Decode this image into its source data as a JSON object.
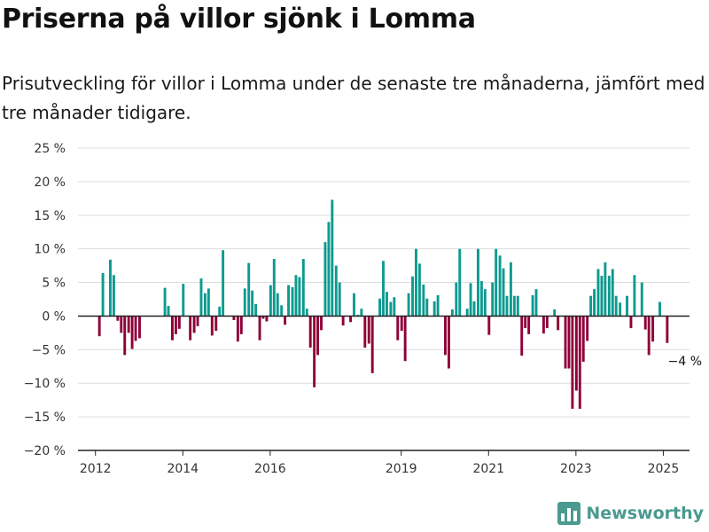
{
  "title": "Priserna på villor sjönk i Lomma",
  "subtitle": "Prisutveckling för villor i Lomma under de senaste tre månaderna, jämfört med tre månader tidigare.",
  "brand": {
    "name": "Newsworthy",
    "icon": "bar-chart-logo-icon"
  },
  "colors": {
    "positive": "#0c9a8f",
    "negative": "#8e0038",
    "grid": "#dddddd",
    "zero_line": "#222222"
  },
  "chart_data": {
    "type": "bar",
    "title": "Priserna på villor sjönk i Lomma",
    "subtitle": "Prisutveckling för villor i Lomma under de senaste tre månaderna, jämfört med tre månader tidigare.",
    "ylim": [
      -20,
      25
    ],
    "y_ticks": [
      -20,
      -15,
      -10,
      -5,
      0,
      5,
      10,
      15,
      20,
      25
    ],
    "y_tick_labels": [
      "−20 %",
      "−15 %",
      "−10 %",
      "−5 %",
      "0 %",
      "5 %",
      "10 %",
      "15 %",
      "20 %",
      "25 %"
    ],
    "x_ticks": [
      2012,
      2014,
      2016,
      2019,
      2021,
      2023,
      2025
    ],
    "x_tick_labels": [
      "2012",
      "2014",
      "2016",
      "2019",
      "2021",
      "2023",
      "2025"
    ],
    "xlim": [
      2011.6,
      2025.6
    ],
    "grid": true,
    "end_label": "−4 %",
    "x": [
      2012.09,
      2012.17,
      2012.26,
      2012.34,
      2012.42,
      2012.51,
      2012.59,
      2012.67,
      2012.76,
      2012.84,
      2012.92,
      2013.01,
      2013.09,
      2013.17,
      2013.26,
      2013.34,
      2013.42,
      2013.51,
      2013.59,
      2013.67,
      2013.76,
      2013.84,
      2013.92,
      2014.01,
      2014.09,
      2014.17,
      2014.26,
      2014.34,
      2014.42,
      2014.51,
      2014.59,
      2014.67,
      2014.76,
      2014.84,
      2014.92,
      2015.01,
      2015.09,
      2015.17,
      2015.26,
      2015.34,
      2015.42,
      2015.51,
      2015.59,
      2015.67,
      2015.76,
      2015.84,
      2015.92,
      2016.01,
      2016.09,
      2016.17,
      2016.26,
      2016.34,
      2016.42,
      2016.51,
      2016.59,
      2016.67,
      2016.76,
      2016.84,
      2016.92,
      2017.01,
      2017.09,
      2017.17,
      2017.26,
      2017.34,
      2017.42,
      2017.51,
      2017.59,
      2017.67,
      2017.76,
      2017.84,
      2017.92,
      2018.01,
      2018.09,
      2018.17,
      2018.26,
      2018.34,
      2018.42,
      2018.51,
      2018.59,
      2018.67,
      2018.76,
      2018.84,
      2018.92,
      2019.01,
      2019.09,
      2019.17,
      2019.26,
      2019.34,
      2019.42,
      2019.51,
      2019.59,
      2019.67,
      2019.76,
      2019.84,
      2019.92,
      2020.01,
      2020.09,
      2020.17,
      2020.26,
      2020.34,
      2020.42,
      2020.51,
      2020.59,
      2020.67,
      2020.76,
      2020.84,
      2020.92,
      2021.01,
      2021.09,
      2021.17,
      2021.26,
      2021.34,
      2021.42,
      2021.51,
      2021.59,
      2021.67,
      2021.76,
      2021.84,
      2021.92,
      2022.01,
      2022.09,
      2022.17,
      2022.26,
      2022.34,
      2022.42,
      2022.51,
      2022.59,
      2022.67,
      2022.76,
      2022.84,
      2022.92,
      2023.01,
      2023.09,
      2023.17,
      2023.26,
      2023.34,
      2023.42,
      2023.51,
      2023.59,
      2023.67,
      2023.76,
      2023.84,
      2023.92,
      2024.01,
      2024.09,
      2024.17,
      2024.26,
      2024.34,
      2024.42,
      2024.51,
      2024.59,
      2024.67,
      2024.76,
      2024.84,
      2024.92,
      2025.01,
      2025.09
    ],
    "values": [
      -3,
      6.4,
      0,
      8.4,
      6.1,
      -0.7,
      -2.5,
      -5.8,
      -2.5,
      -4.9,
      -3.7,
      -3.3,
      0,
      0,
      0,
      0,
      0,
      0,
      4.2,
      1.5,
      -3.6,
      -2.7,
      -1.9,
      4.8,
      0,
      -3.6,
      -2.5,
      -1.5,
      5.6,
      3.4,
      4.1,
      -2.9,
      -2.2,
      1.4,
      9.8,
      0,
      0,
      -0.6,
      -3.8,
      -2.7,
      4.1,
      7.9,
      3.8,
      1.8,
      -3.6,
      -0.4,
      -0.8,
      4.6,
      8.5,
      3.4,
      1.6,
      -1.3,
      4.6,
      4.3,
      6.1,
      5.8,
      8.5,
      1.1,
      -4.7,
      -10.6,
      -5.8,
      -2.1,
      11,
      14,
      17.3,
      7.5,
      5,
      -1.4,
      0,
      -0.9,
      3.4,
      0.2,
      1.1,
      -4.7,
      -4.1,
      -8.5,
      0,
      2.6,
      8.2,
      3.6,
      2.1,
      2.8,
      -3.6,
      -2.2,
      -6.7,
      3.4,
      5.9,
      10,
      7.8,
      4.7,
      2.6,
      0,
      2.2,
      3.1,
      0,
      -5.8,
      -7.8,
      1,
      5,
      10,
      0,
      1.1,
      4.9,
      2.2,
      10,
      5.2,
      4,
      -2.8,
      5,
      10,
      9,
      7.1,
      3,
      8,
      3,
      3,
      -5.9,
      -1.8,
      -2.7,
      3.1,
      4,
      0,
      -2.6,
      -1.8,
      0,
      1,
      -2.1,
      0,
      -7.8,
      -7.8,
      -13.8,
      -11.1,
      -13.8,
      -6.8,
      -3.7,
      3,
      4,
      7,
      6,
      8,
      6,
      7,
      3,
      2,
      0,
      3,
      -1.8,
      6.1,
      0,
      5,
      -2,
      -5.8,
      -3.8,
      0,
      2.1,
      0,
      -4
    ]
  }
}
